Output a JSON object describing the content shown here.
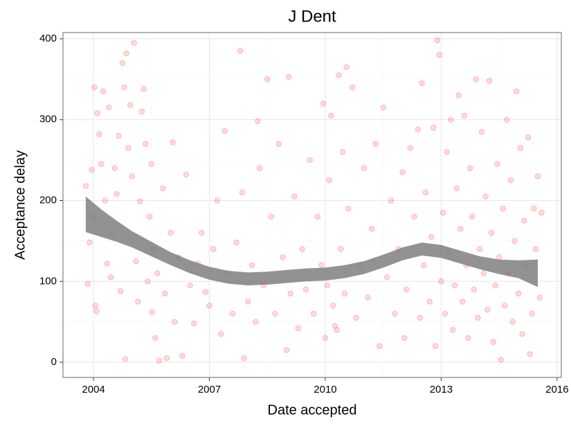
{
  "chart_data": {
    "type": "scatter",
    "title": "J Dent",
    "xlabel": "Date accepted",
    "ylabel": "Acceptance delay",
    "xlim": [
      2003.21,
      2016.11
    ],
    "ylim": [
      -18.8,
      407.7
    ],
    "xticks": [
      2004,
      2007,
      2010,
      2013,
      2016
    ],
    "yticks": [
      0,
      100,
      200,
      300,
      400
    ],
    "xminor": [
      2005.5,
      2008.5,
      2011.5,
      2014.5
    ],
    "yminor": [
      50,
      150,
      250,
      350
    ],
    "grid": true,
    "color": "#ff0000",
    "opacity": 0.15,
    "x": [
      2003.8,
      2003.85,
      2003.9,
      2003.95,
      2004.0,
      2004.02,
      2004.05,
      2004.08,
      2004.1,
      2004.15,
      2004.2,
      2004.25,
      2004.3,
      2004.35,
      2004.4,
      2004.45,
      2004.5,
      2004.55,
      2004.6,
      2004.65,
      2004.7,
      2004.75,
      2004.8,
      2004.82,
      2004.85,
      2004.9,
      2004.95,
      2005.0,
      2005.05,
      2005.1,
      2005.15,
      2005.2,
      2005.25,
      2005.3,
      2005.35,
      2005.4,
      2005.45,
      2005.5,
      2005.52,
      2005.55,
      2005.6,
      2005.65,
      2005.7,
      2005.8,
      2005.85,
      2005.9,
      2006.0,
      2006.05,
      2006.1,
      2006.2,
      2006.3,
      2006.4,
      2006.5,
      2006.6,
      2006.7,
      2006.8,
      2006.9,
      2007.0,
      2007.1,
      2007.2,
      2007.3,
      2007.4,
      2007.5,
      2007.6,
      2007.7,
      2007.8,
      2007.85,
      2007.9,
      2008.0,
      2008.1,
      2008.2,
      2008.25,
      2008.3,
      2008.4,
      2008.5,
      2008.6,
      2008.7,
      2008.8,
      2008.9,
      2009.0,
      2009.05,
      2009.1,
      2009.2,
      2009.3,
      2009.4,
      2009.5,
      2009.6,
      2009.7,
      2009.8,
      2009.9,
      2009.95,
      2010.0,
      2010.05,
      2010.1,
      2010.15,
      2010.2,
      2010.25,
      2010.3,
      2010.35,
      2010.4,
      2010.45,
      2010.5,
      2010.55,
      2010.6,
      2010.7,
      2010.8,
      2010.9,
      2011.0,
      2011.1,
      2011.2,
      2011.3,
      2011.4,
      2011.5,
      2011.6,
      2011.7,
      2011.8,
      2011.9,
      2012.0,
      2012.05,
      2012.1,
      2012.2,
      2012.3,
      2012.4,
      2012.45,
      2012.5,
      2012.55,
      2012.6,
      2012.7,
      2012.75,
      2012.8,
      2012.85,
      2012.9,
      2012.95,
      2013.0,
      2013.05,
      2013.1,
      2013.15,
      2013.2,
      2013.25,
      2013.3,
      2013.35,
      2013.4,
      2013.45,
      2013.5,
      2013.55,
      2013.6,
      2013.65,
      2013.7,
      2013.75,
      2013.8,
      2013.85,
      2013.9,
      2013.95,
      2014.0,
      2014.05,
      2014.1,
      2014.15,
      2014.2,
      2014.25,
      2014.3,
      2014.35,
      2014.4,
      2014.45,
      2014.5,
      2014.55,
      2014.6,
      2014.65,
      2014.7,
      2014.75,
      2014.8,
      2014.85,
      2014.9,
      2014.95,
      2015.0,
      2015.05,
      2015.1,
      2015.15,
      2015.2,
      2015.25,
      2015.3,
      2015.35,
      2015.4,
      2015.45,
      2015.5,
      2015.55,
      2015.6
    ],
    "values": [
      218,
      97,
      148,
      238,
      180,
      340,
      70,
      63,
      308,
      282,
      245,
      335,
      200,
      122,
      315,
      105,
      160,
      240,
      208,
      280,
      88,
      370,
      340,
      4,
      382,
      265,
      318,
      230,
      395,
      125,
      75,
      199,
      310,
      338,
      270,
      100,
      180,
      245,
      62,
      140,
      30,
      110,
      2,
      215,
      85,
      5,
      160,
      272,
      50,
      130,
      8,
      232,
      95,
      48,
      122,
      160,
      87,
      70,
      140,
      200,
      35,
      286,
      110,
      60,
      148,
      385,
      210,
      5,
      75,
      120,
      50,
      298,
      240,
      95,
      350,
      180,
      60,
      270,
      130,
      15,
      353,
      85,
      205,
      42,
      140,
      90,
      250,
      60,
      180,
      120,
      320,
      30,
      95,
      225,
      305,
      70,
      45,
      40,
      355,
      140,
      260,
      85,
      365,
      190,
      340,
      55,
      120,
      240,
      80,
      165,
      270,
      20,
      315,
      105,
      200,
      60,
      140,
      235,
      30,
      90,
      265,
      180,
      288,
      55,
      345,
      120,
      210,
      75,
      155,
      290,
      20,
      398,
      380,
      100,
      185,
      60,
      260,
      135,
      300,
      40,
      95,
      215,
      330,
      165,
      75,
      305,
      120,
      30,
      240,
      180,
      90,
      350,
      55,
      140,
      285,
      110,
      205,
      65,
      348,
      160,
      25,
      95,
      245,
      130,
      3,
      190,
      70,
      300,
      110,
      225,
      50,
      150,
      335,
      85,
      265,
      35,
      175,
      120,
      278,
      10,
      60,
      190,
      140,
      230,
      80,
      185
    ],
    "smooth": {
      "color": "#7f7f7f",
      "x": [
        2003.8,
        2004.2,
        2004.6,
        2005.0,
        2005.5,
        2006.0,
        2006.5,
        2007.0,
        2007.5,
        2008.0,
        2008.5,
        2009.0,
        2009.5,
        2010.0,
        2010.5,
        2011.0,
        2011.5,
        2012.0,
        2012.5,
        2013.0,
        2013.5,
        2014.0,
        2014.5,
        2015.0,
        2015.5
      ],
      "lower": [
        161,
        155,
        149,
        142,
        131,
        120,
        110,
        102,
        97,
        95,
        96,
        98,
        100,
        101,
        104,
        109,
        117,
        126,
        132,
        129,
        122,
        115,
        109,
        104,
        93
      ],
      "upper": [
        205,
        189,
        175,
        162,
        149,
        136,
        126,
        118,
        113,
        111,
        112,
        114,
        116,
        117,
        120,
        125,
        133,
        142,
        148,
        145,
        138,
        131,
        127,
        126,
        127
      ]
    }
  }
}
